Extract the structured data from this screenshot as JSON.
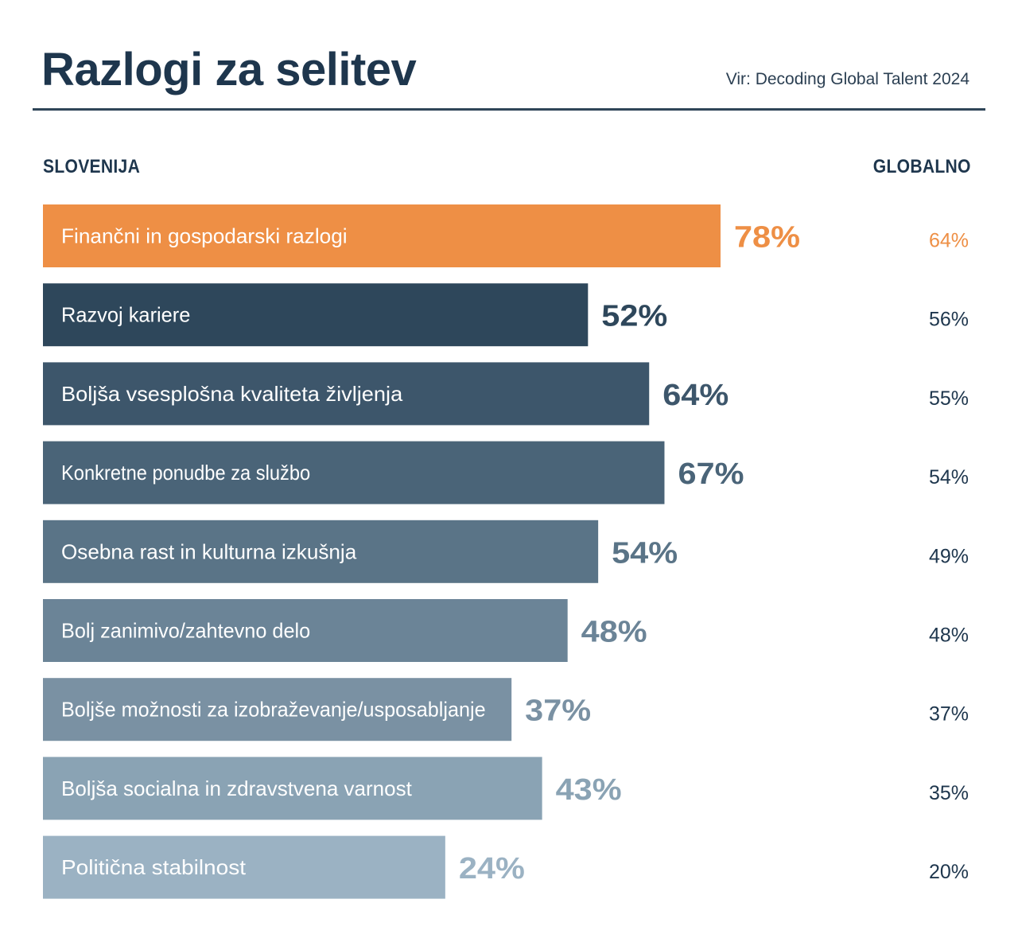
{
  "header": {
    "title": "Razlogi za selitev",
    "source": "Vir: Decoding Global Talent 2024"
  },
  "columns": {
    "left": "SLOVENIJA",
    "right": "GLOBALNO"
  },
  "chart_data": {
    "type": "bar",
    "orientation": "horizontal",
    "title": "Razlogi za selitev",
    "categories": [
      "Finančni in gospodarski razlogi",
      "Razvoj kariere",
      "Boljša vsesplošna kvaliteta življenja",
      "Konkretne ponudbe za službo",
      "Osebna rast in kulturna izkušnja",
      "Bolj zanimivo/zahtevno delo",
      "Boljše možnosti za izobraževanje/usposabljanje",
      "Boljša socialna in zdravstvena varnost",
      "Politična stabilnost"
    ],
    "series": [
      {
        "name": "SLOVENIJA",
        "values": [
          78,
          52,
          64,
          67,
          54,
          48,
          37,
          43,
          24
        ],
        "labels": [
          "78%",
          "52%",
          "64%",
          "67%",
          "54%",
          "48%",
          "37%",
          "43%",
          "24%"
        ]
      },
      {
        "name": "GLOBALNO",
        "values": [
          64,
          56,
          55,
          54,
          49,
          48,
          37,
          35,
          20
        ],
        "labels": [
          "64%",
          "56%",
          "55%",
          "54%",
          "49%",
          "48%",
          "37%",
          "35%",
          "20%"
        ]
      }
    ],
    "unit": "%",
    "colors": {
      "highlight": "#ee8f45",
      "bars": [
        "#ee8f45",
        "#2e475b",
        "#3d566b",
        "#4a6478",
        "#5a7487",
        "#6b8497",
        "#7a91a3",
        "#8aa3b4",
        "#9bb2c3"
      ],
      "globalno_text": "#1e364d",
      "globalno_highlight": "#ee8f45"
    }
  }
}
